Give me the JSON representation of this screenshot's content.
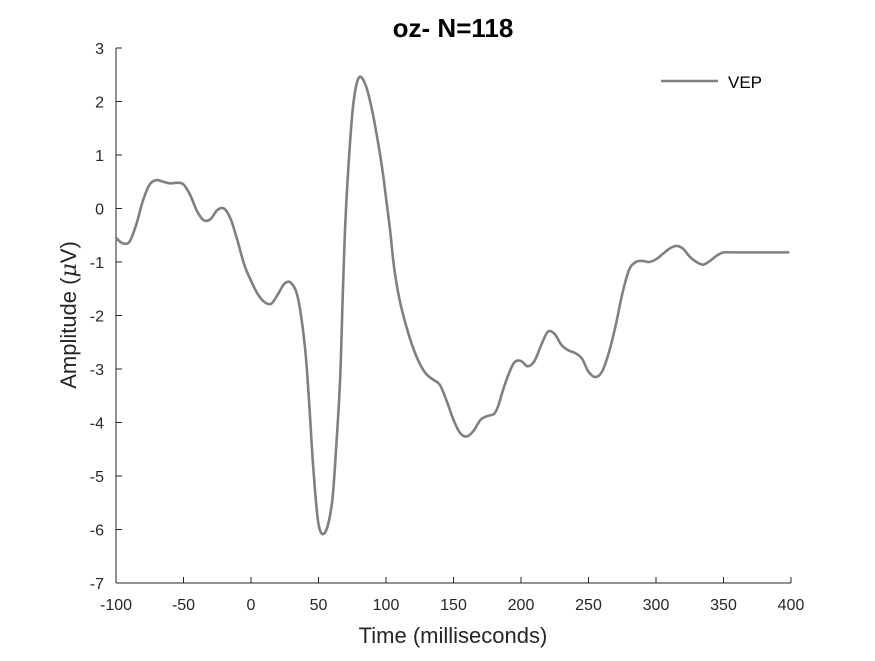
{
  "chart_data": {
    "type": "line",
    "title": "oz- N=118",
    "xlabel": "Time (milliseconds)",
    "ylabel_main": "Amplitude (",
    "ylabel_mu": "μ",
    "ylabel_unit": "V)",
    "xlim": [
      -100,
      400
    ],
    "ylim": [
      -7,
      3
    ],
    "xticks": [
      -100,
      -50,
      0,
      50,
      100,
      150,
      200,
      250,
      300,
      350,
      400
    ],
    "yticks": [
      -7,
      -6,
      -5,
      -4,
      -3,
      -2,
      -1,
      0,
      1,
      2,
      3
    ],
    "grid": false,
    "legend": "top-right",
    "series": [
      {
        "name": "VEP",
        "color": "#808080",
        "x": [
          -100,
          -95,
          -90,
          -85,
          -80,
          -75,
          -70,
          -65,
          -60,
          -55,
          -50,
          -45,
          -40,
          -35,
          -30,
          -25,
          -20,
          -15,
          -10,
          -5,
          0,
          5,
          10,
          15,
          20,
          25,
          30,
          35,
          40,
          43,
          46,
          50,
          55,
          60,
          63,
          66,
          68,
          70,
          73,
          76,
          80,
          85,
          90,
          95,
          98,
          100,
          103,
          106,
          110,
          115,
          120,
          125,
          130,
          135,
          140,
          145,
          150,
          155,
          160,
          165,
          170,
          175,
          180,
          183,
          186,
          190,
          195,
          200,
          205,
          210,
          215,
          220,
          225,
          230,
          235,
          240,
          245,
          250,
          255,
          260,
          265,
          270,
          275,
          280,
          285,
          290,
          295,
          300,
          305,
          310,
          315,
          320,
          325,
          330,
          335,
          340,
          345,
          350,
          355,
          360,
          365,
          370,
          375,
          380,
          385,
          390,
          395,
          398
        ],
        "values": [
          -0.55,
          -0.65,
          -0.62,
          -0.3,
          0.15,
          0.45,
          0.53,
          0.5,
          0.47,
          0.48,
          0.45,
          0.25,
          -0.05,
          -0.22,
          -0.2,
          -0.03,
          0.0,
          -0.2,
          -0.6,
          -1.05,
          -1.35,
          -1.6,
          -1.75,
          -1.78,
          -1.6,
          -1.4,
          -1.4,
          -1.7,
          -2.6,
          -3.6,
          -4.8,
          -5.9,
          -6.05,
          -5.5,
          -4.5,
          -3.2,
          -1.6,
          -0.2,
          1.1,
          2.0,
          2.45,
          2.3,
          1.8,
          1.1,
          0.6,
          0.2,
          -0.4,
          -1.1,
          -1.7,
          -2.2,
          -2.6,
          -2.9,
          -3.1,
          -3.2,
          -3.3,
          -3.6,
          -3.95,
          -4.2,
          -4.26,
          -4.15,
          -3.95,
          -3.88,
          -3.84,
          -3.7,
          -3.45,
          -3.15,
          -2.88,
          -2.85,
          -2.95,
          -2.85,
          -2.55,
          -2.3,
          -2.35,
          -2.55,
          -2.65,
          -2.7,
          -2.8,
          -3.05,
          -3.15,
          -3.05,
          -2.7,
          -2.2,
          -1.6,
          -1.15,
          -1.0,
          -0.98,
          -1.0,
          -0.95,
          -0.85,
          -0.75,
          -0.7,
          -0.75,
          -0.9,
          -1.0,
          -1.05,
          -0.98,
          -0.88,
          -0.82,
          -0.82,
          -0.82,
          -0.82,
          -0.82,
          -0.82,
          -0.82,
          -0.82,
          -0.82,
          -0.82,
          -0.82
        ]
      }
    ]
  }
}
